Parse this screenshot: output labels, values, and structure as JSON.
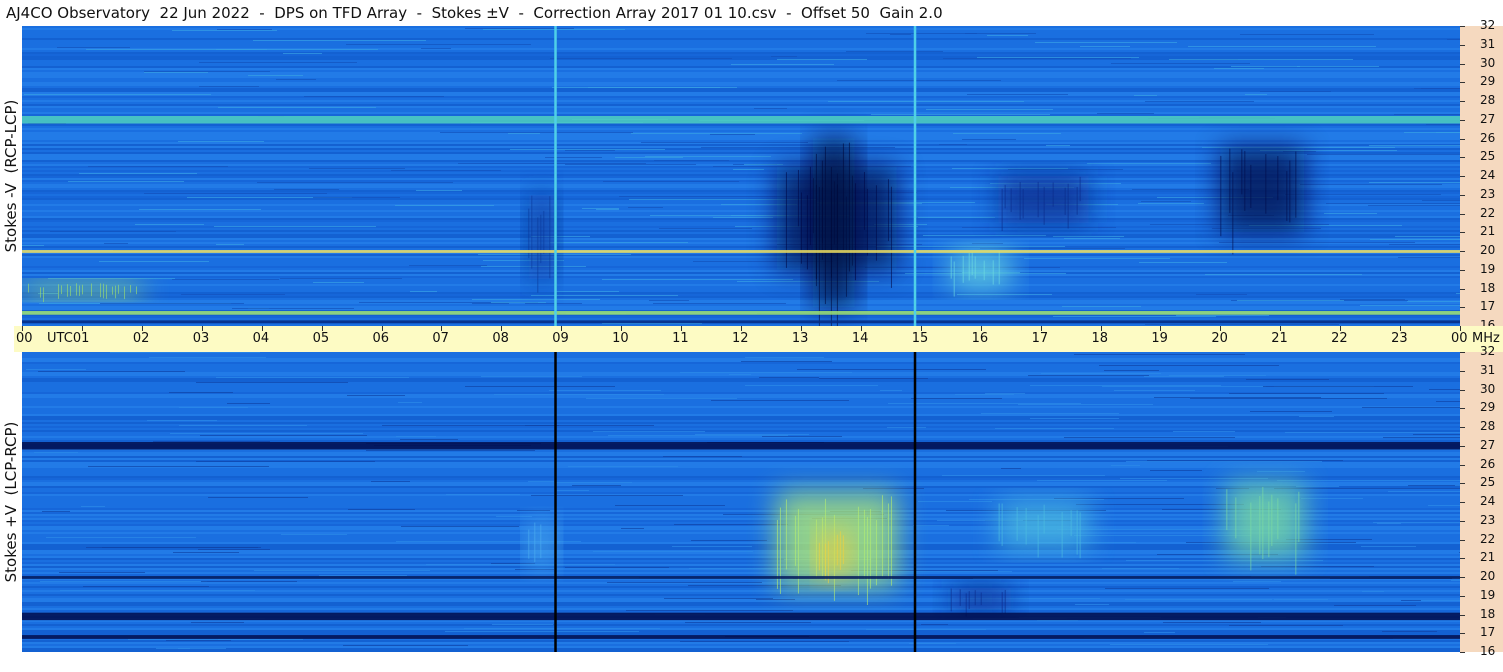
{
  "title": "AJ4CO Observatory  22 Jun 2022  -  DPS on TFD Array  -  Stokes ±V  -  Correction Array 2017 01 10.csv  -  Offset 50  Gain 2.0",
  "chart_data": [
    {
      "type": "heatmap",
      "ylabel": "Stokes -V  (RCP-LCP)",
      "x_ticks": [
        "00",
        "01",
        "02",
        "03",
        "04",
        "05",
        "06",
        "07",
        "08",
        "09",
        "10",
        "11",
        "12",
        "13",
        "14",
        "15",
        "16",
        "17",
        "18",
        "19",
        "20",
        "21",
        "22",
        "23",
        "00"
      ],
      "x_unit": "UTC",
      "y_ticks": [
        16,
        17,
        18,
        19,
        20,
        21,
        22,
        23,
        24,
        25,
        26,
        27,
        28,
        29,
        30,
        31,
        32
      ],
      "y_unit": "MHz",
      "xlim": [
        0,
        24
      ],
      "ylim": [
        16,
        32
      ],
      "background_color": "#1a6fe0",
      "features": [
        {
          "kind": "dark",
          "t_start": 12.6,
          "t_end": 14.6,
          "f_low": 19.0,
          "f_high": 24.5,
          "color": "#000a4a"
        },
        {
          "kind": "dark",
          "t_start": 13.2,
          "t_end": 13.9,
          "f_low": 17.0,
          "f_high": 26.0,
          "color": "#00083a"
        },
        {
          "kind": "dark",
          "t_start": 20.0,
          "t_end": 21.4,
          "f_low": 21.0,
          "f_high": 25.5,
          "color": "#000a4a"
        },
        {
          "kind": "dark",
          "t_start": 16.3,
          "t_end": 17.8,
          "f_low": 21.5,
          "f_high": 24.0,
          "color": "#0a2a88"
        },
        {
          "kind": "dark",
          "t_start": 8.45,
          "t_end": 8.9,
          "f_low": 18.5,
          "f_high": 23.0,
          "color": "#0a3a9a"
        },
        {
          "kind": "bright",
          "t_start": 15.5,
          "t_end": 16.5,
          "f_low": 18.0,
          "f_high": 20.0,
          "color": "#6fe0e0"
        },
        {
          "kind": "bright",
          "t_start": 0.0,
          "t_end": 2.0,
          "f_low": 17.5,
          "f_high": 18.3,
          "color": "#9ee070"
        },
        {
          "kind": "band",
          "t_start": 0.0,
          "t_end": 24.0,
          "f_low": 26.8,
          "f_high": 27.2,
          "color": "#4fd0c0"
        },
        {
          "kind": "band",
          "t_start": 0.0,
          "t_end": 24.0,
          "f_low": 19.9,
          "f_high": 20.05,
          "color": "#f0e060"
        },
        {
          "kind": "band",
          "t_start": 0.0,
          "t_end": 24.0,
          "f_low": 16.6,
          "f_high": 16.8,
          "color": "#9ee070"
        },
        {
          "kind": "band",
          "t_start": 0.0,
          "t_end": 24.0,
          "f_low": 16.15,
          "f_high": 16.3,
          "color": "#052a80"
        },
        {
          "kind": "vline",
          "t": 8.9,
          "color": "#4fd0e8"
        },
        {
          "kind": "vline",
          "t": 14.9,
          "color": "#4fd0e8"
        }
      ]
    },
    {
      "type": "heatmap",
      "ylabel": "Stokes +V  (LCP-RCP)",
      "x_ticks": [
        "00",
        "01",
        "02",
        "03",
        "04",
        "05",
        "06",
        "07",
        "08",
        "09",
        "10",
        "11",
        "12",
        "13",
        "14",
        "15",
        "16",
        "17",
        "18",
        "19",
        "20",
        "21",
        "22",
        "23",
        "00"
      ],
      "x_unit": "UTC",
      "y_ticks": [
        16,
        17,
        18,
        19,
        20,
        21,
        22,
        23,
        24,
        25,
        26,
        27,
        28,
        29,
        30,
        31,
        32
      ],
      "y_unit": "MHz",
      "xlim": [
        0,
        24
      ],
      "ylim": [
        16,
        32
      ],
      "background_color": "#1a6fe0",
      "features": [
        {
          "kind": "bright",
          "t_start": 12.6,
          "t_end": 14.6,
          "f_low": 19.5,
          "f_high": 24.5,
          "color": "#b8f070"
        },
        {
          "kind": "bright",
          "t_start": 13.3,
          "t_end": 13.8,
          "f_low": 20.0,
          "f_high": 22.5,
          "color": "#f0d040"
        },
        {
          "kind": "bright",
          "t_start": 20.1,
          "t_end": 21.4,
          "f_low": 21.0,
          "f_high": 25.0,
          "color": "#7ee0a0"
        },
        {
          "kind": "bright",
          "t_start": 16.3,
          "t_end": 17.8,
          "f_low": 21.5,
          "f_high": 24.0,
          "color": "#4fc0e0"
        },
        {
          "kind": "bright",
          "t_start": 8.45,
          "t_end": 8.9,
          "f_low": 20.5,
          "f_high": 23.0,
          "color": "#4fb0f0"
        },
        {
          "kind": "dark",
          "t_start": 15.5,
          "t_end": 16.5,
          "f_low": 18.2,
          "f_high": 19.5,
          "color": "#0a2a88"
        },
        {
          "kind": "band",
          "t_start": 0.0,
          "t_end": 24.0,
          "f_low": 26.8,
          "f_high": 27.2,
          "color": "#000a4a"
        },
        {
          "kind": "band",
          "t_start": 0.0,
          "t_end": 24.0,
          "f_low": 17.7,
          "f_high": 18.1,
          "color": "#000a4a"
        },
        {
          "kind": "band",
          "t_start": 0.0,
          "t_end": 24.0,
          "f_low": 16.7,
          "f_high": 16.9,
          "color": "#000a4a"
        },
        {
          "kind": "band",
          "t_start": 0.0,
          "t_end": 24.0,
          "f_low": 19.9,
          "f_high": 20.05,
          "color": "#041a5a"
        },
        {
          "kind": "vline",
          "t": 8.9,
          "color": "#000000"
        },
        {
          "kind": "vline",
          "t": 14.9,
          "color": "#000000"
        }
      ]
    }
  ]
}
